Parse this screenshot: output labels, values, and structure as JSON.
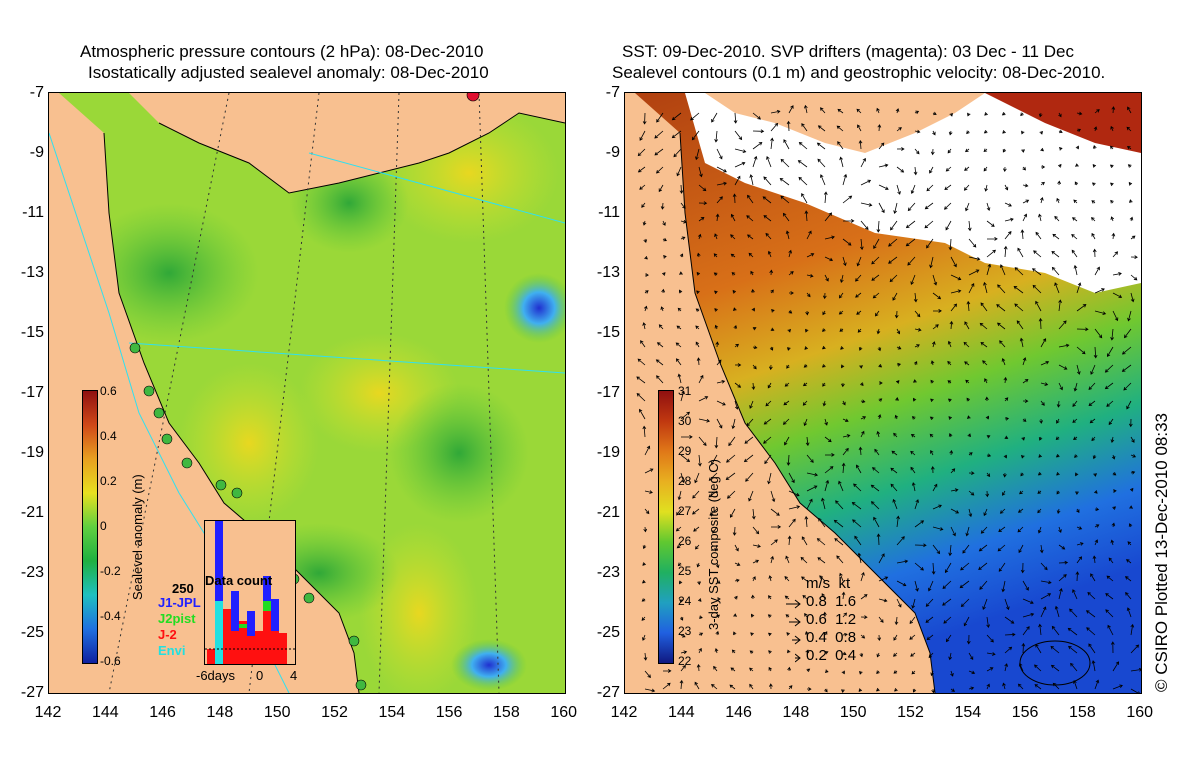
{
  "left_panel": {
    "title_line1": "Atmospheric pressure contours (2 hPa): 08-Dec-2010",
    "title_line2": "Isostatically adjusted sealevel anomaly: 08-Dec-2010",
    "y_ticks": [
      "-7",
      "-9",
      "-11",
      "-13",
      "-15",
      "-17",
      "-19",
      "-21",
      "-23",
      "-25",
      "-27"
    ],
    "x_ticks": [
      "142",
      "144",
      "146",
      "148",
      "150",
      "152",
      "154",
      "156",
      "158",
      "160"
    ],
    "colorbar_label": "Sealevel anomaly (m)",
    "colorbar_ticks": [
      "0.6",
      "0.4",
      "0.2",
      "0",
      "-0.2",
      "-0.4",
      "-0.6"
    ],
    "data_count": {
      "title": "Data count",
      "max_label": "250",
      "series": [
        {
          "name": "J1-JPL",
          "color": "#2020ff"
        },
        {
          "name": "J2pist",
          "color": "#22dd22"
        },
        {
          "name": "J-2",
          "color": "#ff1010"
        },
        {
          "name": "Envi",
          "color": "#22e0e0"
        }
      ],
      "x_labels": [
        "-6days",
        "0",
        "4"
      ]
    }
  },
  "right_panel": {
    "title_line1": "SST: 09-Dec-2010. SVP drifters (magenta): 03 Dec - 11 Dec",
    "title_line2": "Sealevel contours (0.1 m) and geostrophic velocity: 08-Dec-2010.",
    "y_ticks": [
      "-7",
      "-9",
      "-11",
      "-13",
      "-15",
      "-17",
      "-19",
      "-21",
      "-23",
      "-25",
      "-27"
    ],
    "x_ticks": [
      "142",
      "144",
      "146",
      "148",
      "150",
      "152",
      "154",
      "156",
      "158",
      "160"
    ],
    "colorbar_label": "3-day SST composite (deg C)",
    "colorbar_ticks": [
      "31",
      "30",
      "29",
      "28",
      "27",
      "26",
      "25",
      "24",
      "23",
      "22"
    ],
    "velocity_legend": {
      "header": "m/s  kt",
      "rows": [
        "0.8  1.6",
        "0.6  1.2",
        "0.4  0.8",
        "0.2  0.4"
      ]
    }
  },
  "copyright": "© CSIRO Plotted 13-Dec-2010 08:33",
  "colors": {
    "land": "#f8c090",
    "sea_green": "#5cc83c",
    "sea_yellow": "#e8e020",
    "sst_orange": "#d06818",
    "sst_blue": "#1858e8"
  }
}
